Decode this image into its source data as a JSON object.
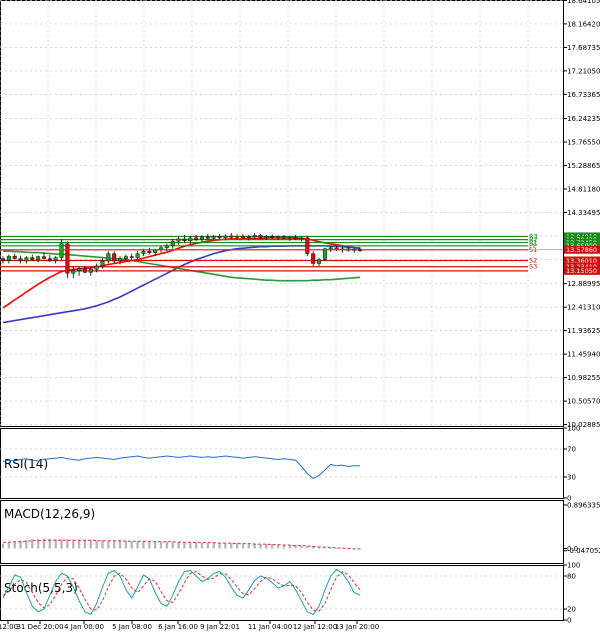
{
  "chart_data": [
    {
      "type": "candlestick",
      "panel": "price",
      "price_axis_labels": [
        "18.64105",
        "18.16420",
        "17.68735",
        "17.21050",
        "16.73365",
        "16.24235",
        "15.76550",
        "15.28865",
        "14.81180",
        "14.33495",
        "13.85810",
        "13.38125",
        "12.88995",
        "12.41310",
        "11.93625",
        "11.45940",
        "10.98255",
        "10.50570",
        "10.02885"
      ],
      "ylim": [
        10.0,
        18.65
      ],
      "time_labels": [
        "12:00",
        "31 Dec 20:00",
        "4 Jan 00:00",
        "5 Jan 08:00",
        "6 Jan 16:00",
        "9 Jan 22:01",
        "11 Jan 04:00",
        "12 Jan 12:00",
        "13 Jan 20:00"
      ],
      "ohlc": [
        [
          13.4,
          13.45,
          13.3,
          13.36
        ],
        [
          13.36,
          13.48,
          13.3,
          13.45
        ],
        [
          13.45,
          13.5,
          13.38,
          13.4
        ],
        [
          13.4,
          13.46,
          13.3,
          13.35
        ],
        [
          13.35,
          13.45,
          13.3,
          13.42
        ],
        [
          13.42,
          13.48,
          13.35,
          13.38
        ],
        [
          13.38,
          13.46,
          13.32,
          13.44
        ],
        [
          13.44,
          13.52,
          13.38,
          13.4
        ],
        [
          13.4,
          13.47,
          13.33,
          13.36
        ],
        [
          13.36,
          13.45,
          13.3,
          13.42
        ],
        [
          13.42,
          13.8,
          13.35,
          13.7
        ],
        [
          13.7,
          13.75,
          13.0,
          13.1
        ],
        [
          13.1,
          13.25,
          13.0,
          13.15
        ],
        [
          13.15,
          13.25,
          13.05,
          13.2
        ],
        [
          13.2,
          13.25,
          13.1,
          13.12
        ],
        [
          13.12,
          13.22,
          13.05,
          13.18
        ],
        [
          13.18,
          13.3,
          13.12,
          13.25
        ],
        [
          13.25,
          13.4,
          13.2,
          13.35
        ],
        [
          13.35,
          13.55,
          13.3,
          13.5
        ],
        [
          13.5,
          13.55,
          13.3,
          13.35
        ],
        [
          13.35,
          13.45,
          13.28,
          13.4
        ],
        [
          13.4,
          13.48,
          13.35,
          13.44
        ],
        [
          13.44,
          13.5,
          13.38,
          13.42
        ],
        [
          13.42,
          13.55,
          13.38,
          13.5
        ],
        [
          13.5,
          13.6,
          13.45,
          13.55
        ],
        [
          13.55,
          13.62,
          13.48,
          13.52
        ],
        [
          13.52,
          13.6,
          13.45,
          13.58
        ],
        [
          13.58,
          13.66,
          13.52,
          13.62
        ],
        [
          13.62,
          13.7,
          13.55,
          13.66
        ],
        [
          13.66,
          13.8,
          13.6,
          13.75
        ],
        [
          13.75,
          13.85,
          13.68,
          13.8
        ],
        [
          13.8,
          13.88,
          13.72,
          13.76
        ],
        [
          13.76,
          13.86,
          13.7,
          13.82
        ],
        [
          13.82,
          13.88,
          13.75,
          13.79
        ],
        [
          13.79,
          13.87,
          13.74,
          13.84
        ],
        [
          13.84,
          13.9,
          13.78,
          13.81
        ],
        [
          13.81,
          13.88,
          13.76,
          13.85
        ],
        [
          13.85,
          13.9,
          13.79,
          13.82
        ],
        [
          13.82,
          13.89,
          13.77,
          13.86
        ],
        [
          13.86,
          13.92,
          13.8,
          13.83
        ],
        [
          13.83,
          13.89,
          13.78,
          13.85
        ],
        [
          13.85,
          13.9,
          13.8,
          13.82
        ],
        [
          13.82,
          13.88,
          13.77,
          13.84
        ],
        [
          13.84,
          13.92,
          13.79,
          13.87
        ],
        [
          13.87,
          13.9,
          13.8,
          13.83
        ],
        [
          13.83,
          13.88,
          13.78,
          13.85
        ],
        [
          13.85,
          13.89,
          13.8,
          13.82
        ],
        [
          13.82,
          13.87,
          13.78,
          13.84
        ],
        [
          13.84,
          13.88,
          13.79,
          13.81
        ],
        [
          13.81,
          13.86,
          13.76,
          13.83
        ],
        [
          13.83,
          13.88,
          13.78,
          13.8
        ],
        [
          13.8,
          13.85,
          13.75,
          13.82
        ],
        [
          13.82,
          13.86,
          13.45,
          13.5
        ],
        [
          13.5,
          13.55,
          13.25,
          13.3
        ],
        [
          13.3,
          13.42,
          13.25,
          13.38
        ],
        [
          13.38,
          13.62,
          13.35,
          13.6
        ],
        [
          13.6,
          13.66,
          13.54,
          13.62
        ],
        [
          13.62,
          13.66,
          13.55,
          13.58
        ],
        [
          13.58,
          13.64,
          13.52,
          13.6
        ],
        [
          13.6,
          13.64,
          13.54,
          13.57
        ],
        [
          13.57,
          13.62,
          13.52,
          13.59
        ],
        [
          13.59,
          13.63,
          13.53,
          13.56
        ]
      ],
      "series": [
        {
          "name": "",
          "color": "#ff0000",
          "values": [
            12.4,
            12.48,
            12.56,
            12.64,
            12.72,
            12.8,
            12.88,
            12.95,
            13.02,
            13.08,
            13.14,
            13.16,
            13.18,
            13.19,
            13.2,
            13.21,
            13.23,
            13.25,
            13.28,
            13.3,
            13.32,
            13.34,
            13.36,
            13.38,
            13.41,
            13.44,
            13.47,
            13.5,
            13.53,
            13.57,
            13.61,
            13.65,
            13.68,
            13.71,
            13.73,
            13.75,
            13.77,
            13.78,
            13.79,
            13.8,
            13.8,
            13.8,
            13.81,
            13.81,
            13.81,
            13.82,
            13.82,
            13.82,
            13.82,
            13.82,
            13.82,
            13.81,
            13.8,
            13.77,
            13.74,
            13.72,
            13.7,
            13.68,
            13.66,
            13.64,
            13.62,
            13.61
          ]
        },
        {
          "name": "",
          "color": "#3a3ac8",
          "values": [
            12.1,
            12.12,
            12.14,
            12.16,
            12.18,
            12.2,
            12.22,
            12.24,
            12.26,
            12.28,
            12.3,
            12.32,
            12.34,
            12.36,
            12.38,
            12.41,
            12.44,
            12.48,
            12.52,
            12.57,
            12.62,
            12.68,
            12.74,
            12.8,
            12.86,
            12.92,
            12.98,
            13.04,
            13.1,
            13.16,
            13.22,
            13.28,
            13.33,
            13.38,
            13.42,
            13.46,
            13.5,
            13.53,
            13.56,
            13.58,
            13.6,
            13.61,
            13.62,
            13.63,
            13.64,
            13.64,
            13.65,
            13.65,
            13.65,
            13.66,
            13.66,
            13.66,
            13.66,
            13.66,
            13.66,
            13.66,
            13.65,
            13.65,
            13.64,
            13.63,
            13.62,
            13.61
          ]
        },
        {
          "name": "",
          "color": "#2a9a3a",
          "values": [
            13.55,
            13.55,
            13.54,
            13.54,
            13.53,
            13.52,
            13.52,
            13.51,
            13.5,
            13.49,
            13.49,
            13.48,
            13.47,
            13.46,
            13.45,
            13.44,
            13.43,
            13.42,
            13.41,
            13.4,
            13.39,
            13.38,
            13.36,
            13.34,
            13.32,
            13.3,
            13.28,
            13.26,
            13.24,
            13.22,
            13.2,
            13.18,
            13.16,
            13.14,
            13.12,
            13.1,
            13.08,
            13.06,
            13.04,
            13.02,
            13.01,
            13.0,
            12.99,
            12.98,
            12.97,
            12.96,
            12.96,
            12.95,
            12.95,
            12.95,
            12.95,
            12.95,
            12.95,
            12.96,
            12.96,
            12.97,
            12.97,
            12.98,
            12.99,
            13.0,
            13.01,
            13.02
          ]
        }
      ],
      "levels": [
        {
          "name": "R3",
          "value": 13.8491,
          "label": "13.84910",
          "color": "#1a8a1a"
        },
        {
          "name": "R2",
          "value": 13.7843,
          "label": "13.78430",
          "color": "#1a8a1a"
        },
        {
          "name": "R1",
          "value": 13.7245,
          "label": "13.72450",
          "color": "#1a8a1a"
        },
        {
          "name": "PP",
          "value": 13.659,
          "label": "13.65900",
          "color": "#1a8a1a"
        },
        {
          "name": "S1",
          "value": 13.5786,
          "label": "13.57860",
          "color": "#d01010"
        },
        {
          "name": "S2",
          "value": 13.3601,
          "label": "13.36010",
          "color": "#d01010"
        },
        {
          "name": "S3",
          "value": 13.2341,
          "label": "13.23410",
          "color": "#d01010"
        },
        {
          "name": "",
          "value": 13.1505,
          "label": "13.15050",
          "color": "#d01010"
        }
      ],
      "current_price_label": "13.57860"
    },
    {
      "type": "line",
      "panel": "rsi",
      "title": "RSI(14)",
      "axis_labels": [
        "100",
        "70",
        "30",
        "0"
      ],
      "ylim": [
        0,
        100
      ],
      "hlines": [
        70,
        30
      ],
      "series": [
        {
          "name": "RSI(14)",
          "color": "#1f6fd0",
          "values": [
            52,
            54,
            53,
            55,
            56,
            54,
            53,
            55,
            56,
            57,
            58,
            56,
            55,
            54,
            56,
            57,
            58,
            57,
            56,
            55,
            57,
            58,
            59,
            60,
            58,
            57,
            58,
            59,
            60,
            59,
            58,
            59,
            60,
            59,
            58,
            59,
            58,
            59,
            60,
            59,
            58,
            57,
            58,
            59,
            58,
            57,
            56,
            55,
            56,
            55,
            54,
            45,
            35,
            28,
            32,
            40,
            48,
            46,
            47,
            45,
            46,
            46
          ]
        }
      ]
    },
    {
      "type": "bar",
      "panel": "macd",
      "title": "MACD(12,26,9)",
      "axis_labels": [
        "0.896335",
        "0.0",
        "-0.047052"
      ],
      "ylim": [
        -0.3,
        1.0
      ],
      "values": [
        0.1,
        0.12,
        0.14,
        0.16,
        0.18,
        0.19,
        0.2,
        0.2,
        0.2,
        0.19,
        0.19,
        0.19,
        0.18,
        0.18,
        0.18,
        0.17,
        0.17,
        0.17,
        0.16,
        0.16,
        0.16,
        0.16,
        0.15,
        0.15,
        0.15,
        0.15,
        0.15,
        0.14,
        0.14,
        0.14,
        0.14,
        0.13,
        0.13,
        0.13,
        0.12,
        0.12,
        0.12,
        0.12,
        0.11,
        0.11,
        0.11,
        0.1,
        0.1,
        0.1,
        0.09,
        0.09,
        0.09,
        0.08,
        0.08,
        0.07,
        0.07,
        0.06,
        0.05,
        0.04,
        0.03,
        0.02,
        0.01,
        0.0,
        -0.01,
        -0.01,
        -0.02,
        -0.02
      ],
      "signal": [
        0.13,
        0.13,
        0.14,
        0.14,
        0.15,
        0.16,
        0.16,
        0.17,
        0.17,
        0.17,
        0.17,
        0.17,
        0.17,
        0.17,
        0.17,
        0.17,
        0.16,
        0.16,
        0.16,
        0.16,
        0.16,
        0.15,
        0.15,
        0.15,
        0.15,
        0.15,
        0.14,
        0.14,
        0.14,
        0.14,
        0.13,
        0.13,
        0.13,
        0.12,
        0.12,
        0.12,
        0.12,
        0.11,
        0.11,
        0.11,
        0.1,
        0.1,
        0.1,
        0.09,
        0.09,
        0.09,
        0.08,
        0.08,
        0.07,
        0.07,
        0.06,
        0.06,
        0.05,
        0.04,
        0.03,
        0.03,
        0.02,
        0.01,
        0.01,
        0.0,
        -0.01,
        -0.01
      ]
    },
    {
      "type": "line",
      "panel": "stoch",
      "title": "Stoch(5,5,3)",
      "axis_labels": [
        "100",
        "80",
        "20",
        "0"
      ],
      "ylim": [
        0,
        100
      ],
      "hlines": [
        80,
        20
      ],
      "series": [
        {
          "name": "%K",
          "color": "#1f9fb0",
          "values": [
            40,
            60,
            82,
            78,
            50,
            25,
            15,
            20,
            45,
            70,
            85,
            80,
            60,
            35,
            15,
            10,
            30,
            60,
            85,
            90,
            80,
            55,
            40,
            60,
            82,
            75,
            50,
            30,
            25,
            45,
            70,
            88,
            90,
            80,
            70,
            75,
            85,
            88,
            78,
            60,
            45,
            40,
            55,
            72,
            80,
            76,
            68,
            58,
            62,
            70,
            55,
            35,
            15,
            10,
            25,
            55,
            80,
            92,
            85,
            70,
            50,
            45
          ],
          "dashed": false
        },
        {
          "name": "%D",
          "color": "#e03030",
          "values": [
            45,
            52,
            65,
            74,
            68,
            50,
            32,
            22,
            28,
            45,
            65,
            78,
            75,
            58,
            38,
            20,
            18,
            35,
            60,
            80,
            85,
            75,
            58,
            50,
            62,
            75,
            70,
            52,
            35,
            32,
            48,
            68,
            85,
            88,
            80,
            74,
            76,
            84,
            84,
            74,
            60,
            48,
            46,
            57,
            70,
            78,
            75,
            67,
            62,
            63,
            62,
            50,
            32,
            18,
            16,
            30,
            55,
            78,
            88,
            82,
            68,
            55
          ],
          "dashed": true
        }
      ]
    }
  ]
}
